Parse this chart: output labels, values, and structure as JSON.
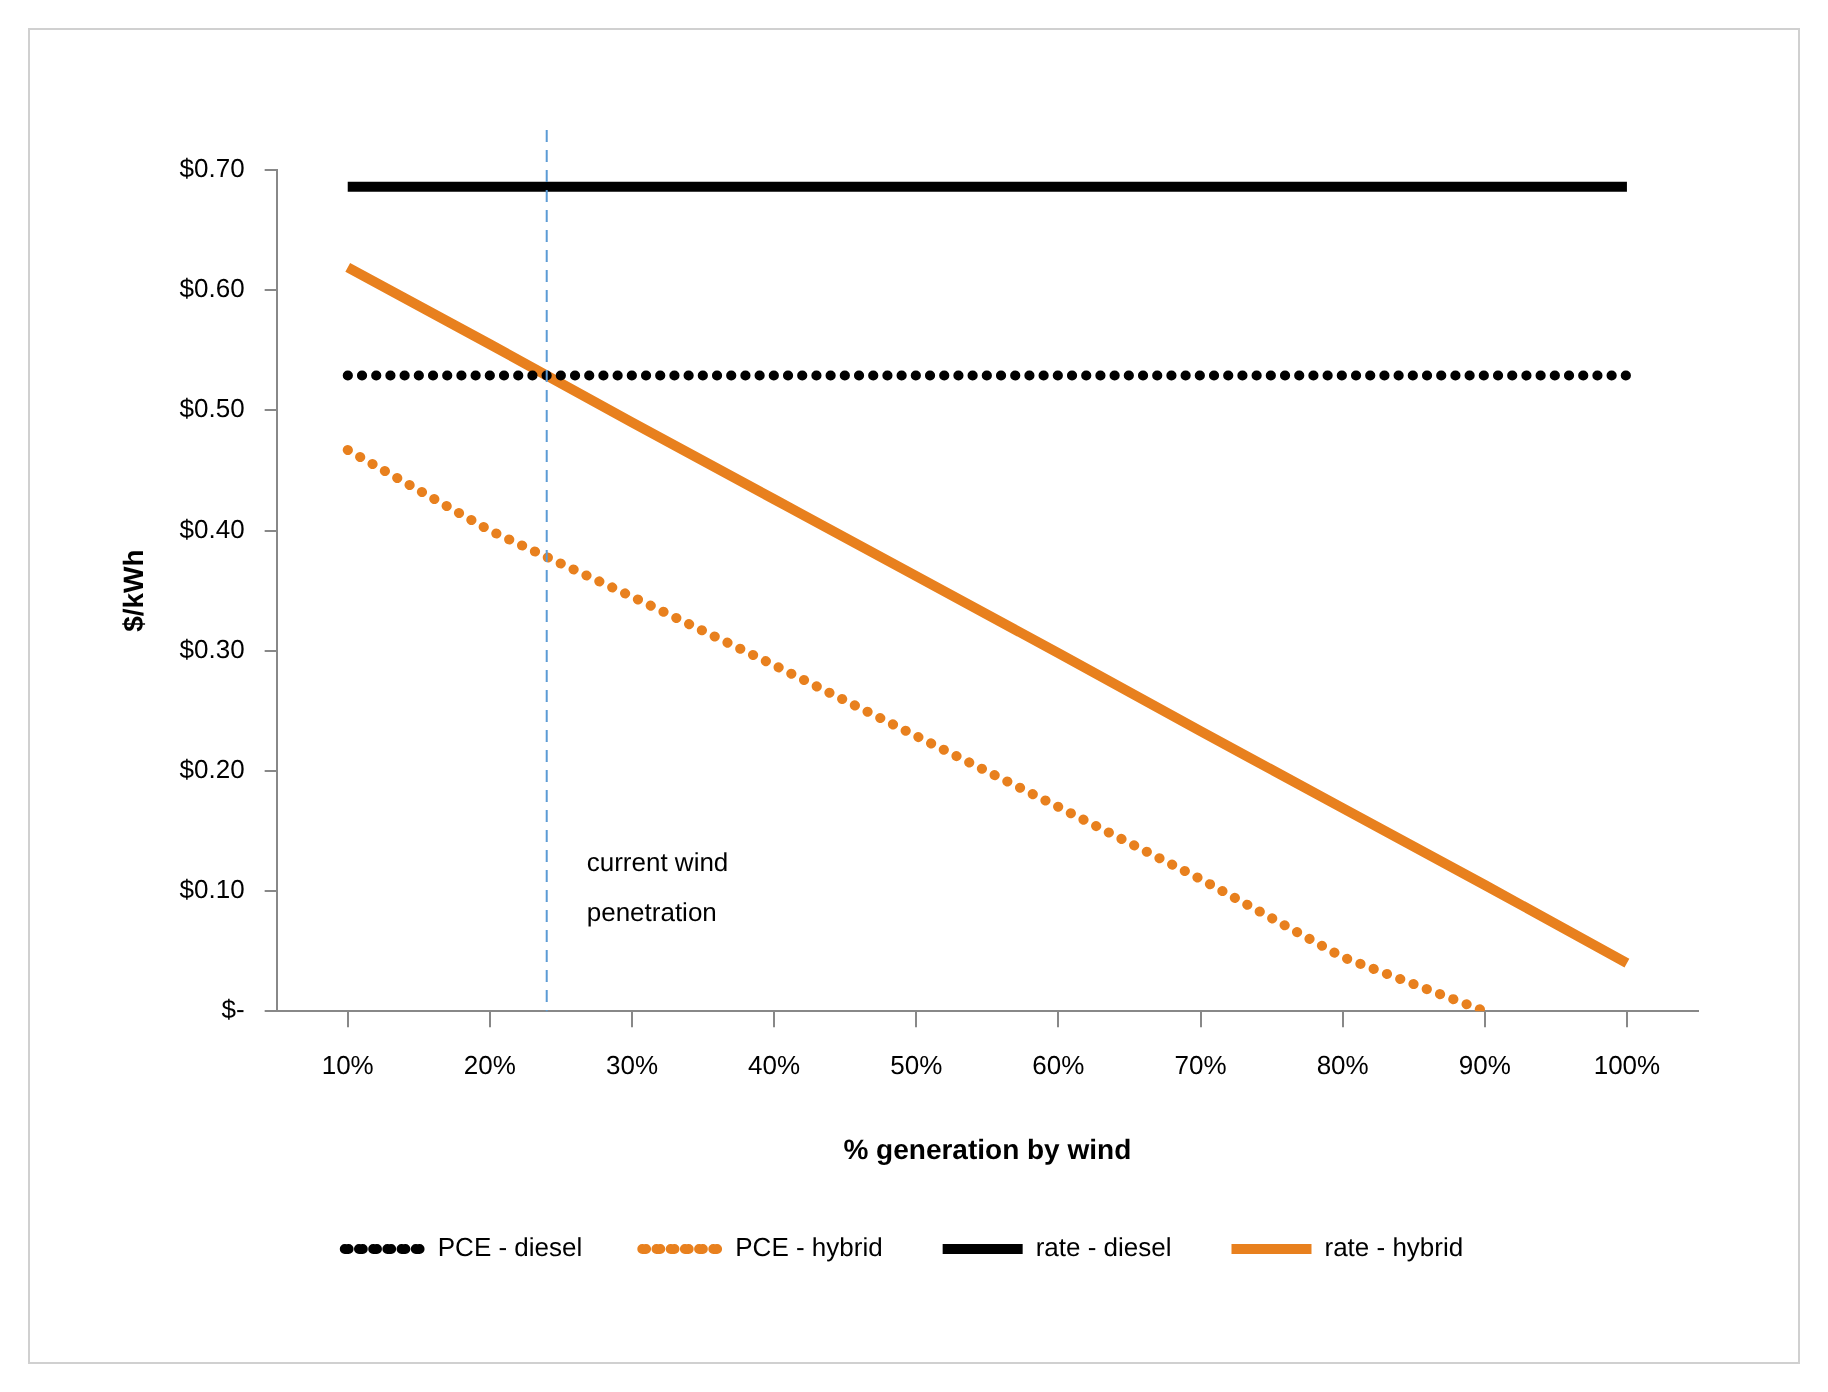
{
  "chart_data": {
    "type": "line",
    "xlabel": "% generation by wind",
    "ylabel": "$/kWh",
    "x": [
      10,
      20,
      30,
      40,
      50,
      60,
      70,
      80,
      90,
      100
    ],
    "xlim": [
      5,
      105
    ],
    "xticks": [
      {
        "value": 10,
        "label": "10%"
      },
      {
        "value": 20,
        "label": "20%"
      },
      {
        "value": 30,
        "label": "30%"
      },
      {
        "value": 40,
        "label": "40%"
      },
      {
        "value": 50,
        "label": "50%"
      },
      {
        "value": 60,
        "label": "60%"
      },
      {
        "value": 70,
        "label": "70%"
      },
      {
        "value": 80,
        "label": "80%"
      },
      {
        "value": 90,
        "label": "90%"
      },
      {
        "value": 100,
        "label": "100%"
      }
    ],
    "ylim": [
      0,
      0.7
    ],
    "yticks": [
      {
        "value": 0,
        "label": "$-"
      },
      {
        "value": 0.1,
        "label": "$0.10"
      },
      {
        "value": 0.2,
        "label": "$0.20"
      },
      {
        "value": 0.3,
        "label": "$0.30"
      },
      {
        "value": 0.4,
        "label": "$0.40"
      },
      {
        "value": 0.5,
        "label": "$0.50"
      },
      {
        "value": 0.6,
        "label": "$0.60"
      },
      {
        "value": 0.7,
        "label": "$0.70"
      }
    ],
    "series": [
      {
        "name": "PCE - diesel",
        "color": "#000000",
        "line_style": "dotted",
        "values": [
          0.529,
          0.529,
          0.529,
          0.529,
          0.529,
          0.529,
          0.529,
          0.529,
          0.529,
          0.529
        ]
      },
      {
        "name": "PCE - hybrid",
        "color": "#e8801e",
        "line_style": "dotted",
        "values": [
          0.467,
          0.4,
          0.345,
          0.288,
          0.229,
          0.17,
          0.11,
          0.045,
          0,
          null
        ]
      },
      {
        "name": "rate - diesel",
        "color": "#000000",
        "line_style": "solid",
        "values": [
          0.686,
          0.686,
          0.686,
          0.686,
          0.686,
          0.686,
          0.686,
          0.686,
          0.686,
          0.686
        ]
      },
      {
        "name": "rate - hybrid",
        "color": "#e8801e",
        "line_style": "solid",
        "values": [
          0.619,
          0.555,
          0.49,
          0.426,
          0.362,
          0.298,
          0.233,
          0.169,
          0.105,
          0.04
        ]
      }
    ],
    "ref_lines": [
      {
        "axis": "x",
        "value": 24,
        "label": "current wind penetration",
        "color": "#5b9bd5",
        "line_style": "dashed"
      }
    ],
    "grid": false,
    "legend": "bottom",
    "marker": "none"
  }
}
